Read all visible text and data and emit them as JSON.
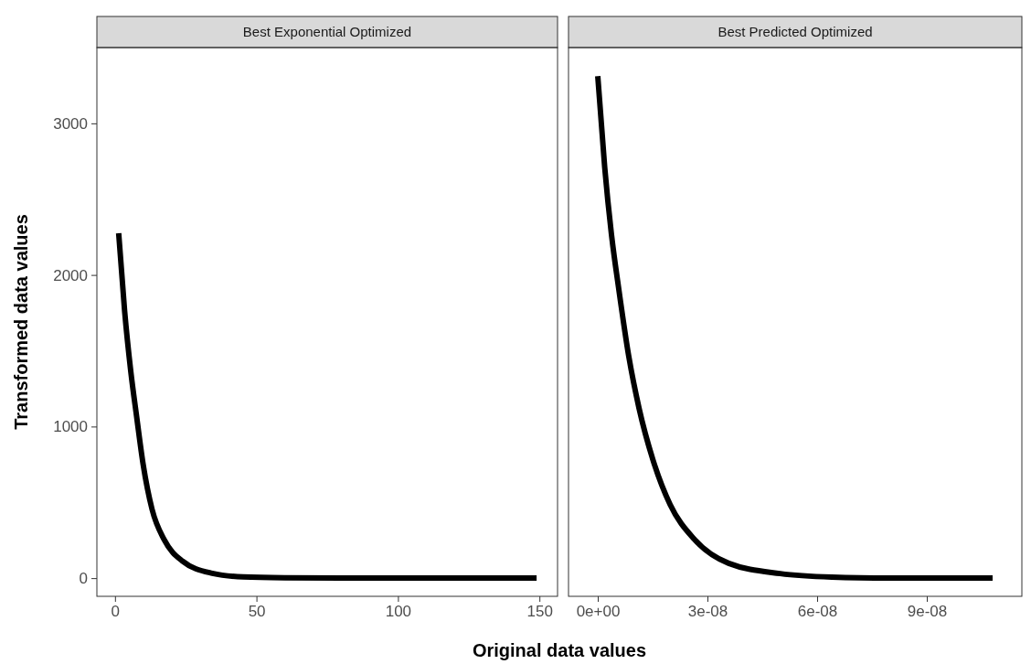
{
  "chart_data": [
    {
      "type": "line",
      "title": "Best Exponential Optimized",
      "xlabel": "Original data values",
      "ylabel": "Transformed data values",
      "series": [
        {
          "color": "#000000",
          "x": [
            1.3,
            3.4,
            5.6,
            7.7,
            9.9,
            13.1,
            17.4,
            23.8,
            34.4,
            45.3,
            60,
            80,
            100,
            120,
            149
          ],
          "values": [
            2275,
            1762,
            1360,
            1058,
            756,
            454,
            253,
            113,
            32,
            8,
            2,
            0,
            0,
            0,
            0
          ]
        }
      ],
      "xlim": [
        -6.4,
        156.4
      ],
      "xticks": [
        0,
        50,
        100,
        150
      ],
      "ylim": [
        -120,
        3500
      ],
      "yticks": [
        0,
        1000,
        2000,
        3000
      ],
      "grid": false,
      "line_style": "solid",
      "marker": "none"
    },
    {
      "type": "line",
      "title": "Best Predicted Optimized",
      "series": [
        {
          "color": "#000000",
          "x": [
            0,
            1.9e-09,
            3.8e-09,
            5.7e-09,
            8.5e-09,
            1.13e-08,
            1.51e-08,
            1.98e-08,
            2.64e-08,
            3.58e-08,
            4.99e-08,
            6.4e-08,
            8e-08,
            1.08e-07
          ],
          "values": [
            3312,
            2710,
            2256,
            1915,
            1460,
            1120,
            780,
            485,
            257,
            98,
            30,
            7,
            1,
            0
          ]
        }
      ],
      "xlim": [
        -8e-09,
        1.16e-07
      ],
      "xticks": [
        {
          "value": 0,
          "label": "0e+00"
        },
        {
          "value": 3e-08,
          "label": "3e-08"
        },
        {
          "value": 6e-08,
          "label": "6e-08"
        },
        {
          "value": 9e-08,
          "label": "9e-08"
        }
      ],
      "ylim": [
        -120,
        3500
      ],
      "yticks": [
        0,
        1000,
        2000,
        3000
      ],
      "tick_labels": "x",
      "grid": false,
      "line_style": "solid",
      "marker": "none"
    }
  ]
}
